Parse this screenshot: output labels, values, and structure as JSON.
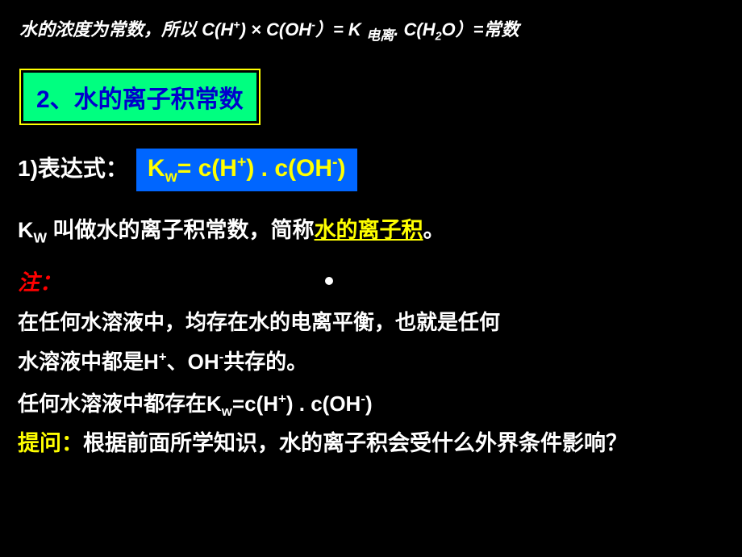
{
  "line1_a": "水的浓度为常数，所以   C(H",
  "line1_b": ") × C(OH",
  "line1_c": "）= K ",
  "line1_sub": "电离",
  "line1_d": ". C(H",
  "line1_e": "O）=常数",
  "section_title": "2、水的离子积常数",
  "expr_label": "1)表达式：",
  "formula_a": "K",
  "formula_b": "= c(H",
  "formula_c": ") . c(OH",
  "formula_d": ")",
  "explain_a": "K",
  "explain_b": " 叫做水的离子积常数，简称",
  "explain_link": "水的离子积",
  "explain_c": "。",
  "zhu": "注：",
  "para2_a": "在任何水溶液中，均存在水的电离平衡，也就是任何",
  "para2_b": "水溶液中都是H",
  "para2_c": "、OH",
  "para2_d": "共存的。",
  "para3_a": "任何水溶液中都存在K",
  "para3_b": "=c(H",
  "para3_c": ") . c(OH",
  "para3_d": ")",
  "tiwen": "提问：",
  "question": "根据前面所学知识，水的离子积会受什么外界条件影响？",
  "plus": "+",
  "minus": "-",
  "w": "w",
  "W": "W",
  "two": "2"
}
